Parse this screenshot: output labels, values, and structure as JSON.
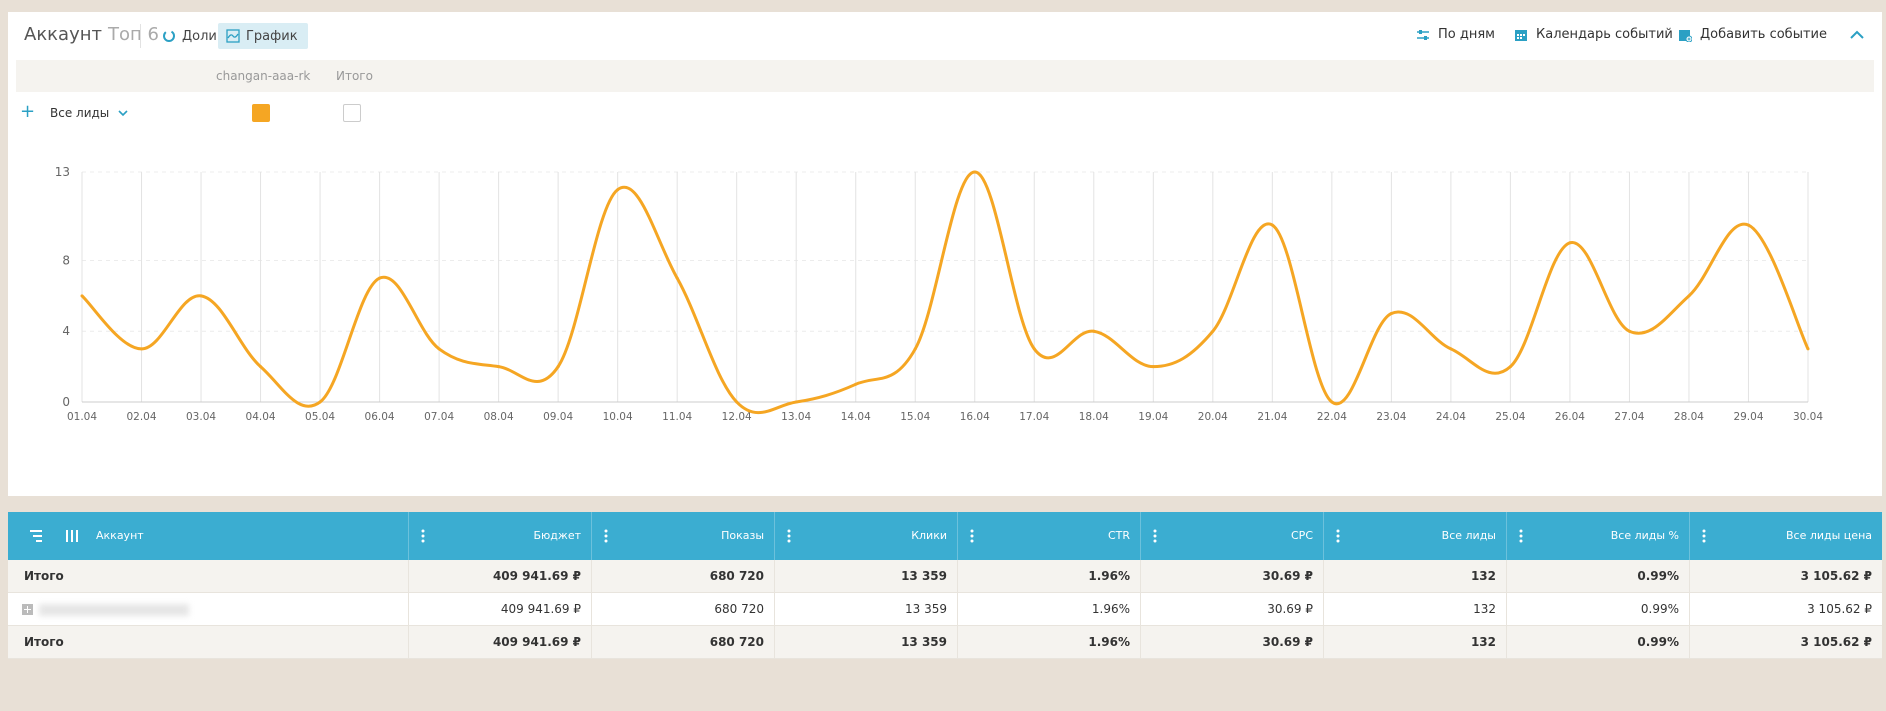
{
  "header": {
    "title": "Аккаунт",
    "subtitle": "Топ 6",
    "tabs": [
      {
        "label": "Доли",
        "active": false
      },
      {
        "label": "График",
        "active": true
      }
    ],
    "tools": {
      "by_days": "По дням",
      "calendar": "Календарь событий",
      "add_event": "Добавить событие"
    }
  },
  "series_bar": {
    "names": [
      "changan-aaa-rk",
      "Итого"
    ]
  },
  "filter": {
    "metric_label": "Все лиды"
  },
  "colors": {
    "accent": "#3badd1",
    "series": "#f5a623",
    "background": "#e8e0d6"
  },
  "chart_data": {
    "type": "line",
    "x": [
      "01.04",
      "02.04",
      "03.04",
      "04.04",
      "05.04",
      "06.04",
      "07.04",
      "08.04",
      "09.04",
      "10.04",
      "11.04",
      "12.04",
      "13.04",
      "14.04",
      "15.04",
      "16.04",
      "17.04",
      "18.04",
      "19.04",
      "20.04",
      "21.04",
      "22.04",
      "23.04",
      "24.04",
      "25.04",
      "26.04",
      "27.04",
      "28.04",
      "29.04",
      "30.04"
    ],
    "series": [
      {
        "name": "changan-aaa-rk",
        "values": [
          6,
          3,
          6,
          2,
          0,
          7,
          3,
          2,
          2,
          12,
          7,
          0,
          0,
          1,
          3,
          13,
          3,
          4,
          2,
          4,
          10,
          0,
          5,
          3,
          2,
          9,
          4,
          6,
          10,
          3
        ]
      }
    ],
    "yticks": [
      0,
      4,
      8,
      13
    ],
    "ylim": [
      0,
      13
    ],
    "grid": true
  },
  "table": {
    "columns": [
      "Аккаунт",
      "Бюджет",
      "Показы",
      "Клики",
      "CTR",
      "CPC",
      "Все лиды",
      "Все лиды %",
      "Все лиды цена"
    ],
    "rows": [
      {
        "name": "Итого",
        "budget": "409 941.69 ₽",
        "shows": "680 720",
        "clicks": "13 359",
        "ctr": "1.96%",
        "cpc": "30.69 ₽",
        "leads": "132",
        "leads_pct": "0.99%",
        "lead_price": "3 105.62 ₽"
      },
      {
        "name": "",
        "budget": "409 941.69 ₽",
        "shows": "680 720",
        "clicks": "13 359",
        "ctr": "1.96%",
        "cpc": "30.69 ₽",
        "leads": "132",
        "leads_pct": "0.99%",
        "lead_price": "3 105.62 ₽"
      },
      {
        "name": "Итого",
        "budget": "409 941.69 ₽",
        "shows": "680 720",
        "clicks": "13 359",
        "ctr": "1.96%",
        "cpc": "30.69 ₽",
        "leads": "132",
        "leads_pct": "0.99%",
        "lead_price": "3 105.62 ₽"
      }
    ]
  }
}
